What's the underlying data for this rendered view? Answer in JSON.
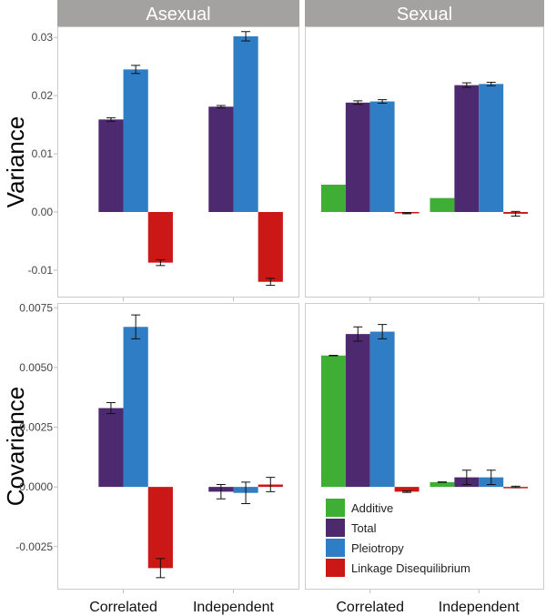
{
  "chart_data": {
    "type": "bar",
    "facets_columns": [
      "Asexual",
      "Sexual"
    ],
    "facets_rows": [
      "Variance",
      "Covariance"
    ],
    "categories": [
      "Correlated",
      "Independent"
    ],
    "series_names": [
      "Additive",
      "Total",
      "Pleiotropy",
      "Linkage Disequilibrium"
    ],
    "colors": {
      "Additive": "#3fae35",
      "Total": "#4d2970",
      "Pleiotropy": "#2f7dc4",
      "Linkage Disequilibrium": "#cc1717"
    },
    "rows": [
      {
        "ylabel": "Variance",
        "ylim": [
          -0.0147,
          0.0319
        ],
        "ticks": [
          -0.01,
          0.0,
          0.01,
          0.02,
          0.03
        ],
        "tick_labels": [
          "-0.01",
          "0.00",
          "0.01",
          "0.02",
          "0.03"
        ],
        "panels": [
          {
            "facet": "Asexual",
            "series": [
              {
                "name": "Additive",
                "values": [
                  null,
                  null
                ],
                "errors": [
                  null,
                  null
                ]
              },
              {
                "name": "Total",
                "values": [
                  0.0159,
                  0.0181
                ],
                "errors": [
                  0.0003,
                  0.0002
                ]
              },
              {
                "name": "Pleiotropy",
                "values": [
                  0.0245,
                  0.0302
                ],
                "errors": [
                  0.0007,
                  0.0008
                ]
              },
              {
                "name": "Linkage Disequilibrium",
                "values": [
                  -0.0087,
                  -0.012
                ],
                "errors": [
                  0.0005,
                  0.0006
                ]
              }
            ]
          },
          {
            "facet": "Sexual",
            "series": [
              {
                "name": "Additive",
                "values": [
                  0.0047,
                  0.0024
                ],
                "errors": [
                  null,
                  null
                ]
              },
              {
                "name": "Total",
                "values": [
                  0.0188,
                  0.0218
                ],
                "errors": [
                  0.0003,
                  0.0004
                ]
              },
              {
                "name": "Pleiotropy",
                "values": [
                  0.019,
                  0.022
                ],
                "errors": [
                  0.0003,
                  0.0003
                ]
              },
              {
                "name": "Linkage Disequilibrium",
                "values": [
                  -0.0002,
                  -0.0003
                ],
                "errors": [
                  0.0001,
                  0.0004
                ]
              }
            ]
          }
        ]
      },
      {
        "ylabel": "Covariance",
        "ylim": [
          -0.0043,
          0.0077
        ],
        "ticks": [
          -0.0025,
          0.0,
          0.0025,
          0.005,
          0.0075
        ],
        "tick_labels": [
          "-0.0025",
          "0.0000",
          "0.0025",
          "0.0050",
          "0.0075"
        ],
        "panels": [
          {
            "facet": "Asexual",
            "series": [
              {
                "name": "Additive",
                "values": [
                  null,
                  null
                ],
                "errors": [
                  null,
                  null
                ]
              },
              {
                "name": "Total",
                "values": [
                  0.0033,
                  -0.0002
                ],
                "errors": [
                  0.00023,
                  0.0003
                ]
              },
              {
                "name": "Pleiotropy",
                "values": [
                  0.0067,
                  -0.00025
                ],
                "errors": [
                  0.0005,
                  0.00045
                ]
              },
              {
                "name": "Linkage Disequilibrium",
                "values": [
                  -0.0034,
                  0.0001
                ],
                "errors": [
                  0.0004,
                  0.0003
                ]
              }
            ]
          },
          {
            "facet": "Sexual",
            "series": [
              {
                "name": "Additive",
                "values": [
                  0.0055,
                  0.0002
                ],
                "errors": [
                  1e-05,
                  1e-05
                ]
              },
              {
                "name": "Total",
                "values": [
                  0.0064,
                  0.0004
                ],
                "errors": [
                  0.0003,
                  0.0003
                ]
              },
              {
                "name": "Pleiotropy",
                "values": [
                  0.0065,
                  0.0004
                ],
                "errors": [
                  0.0003,
                  0.0003
                ]
              },
              {
                "name": "Linkage Disequilibrium",
                "values": [
                  -0.0002,
                  0.0
                ],
                "errors": [
                  3e-05,
                  3e-05
                ]
              }
            ]
          }
        ]
      }
    ],
    "legend": {
      "position": "bottom-right-inside",
      "entries": [
        "Additive",
        "Total",
        "Pleiotropy",
        "Linkage Disequilibrium"
      ]
    }
  }
}
